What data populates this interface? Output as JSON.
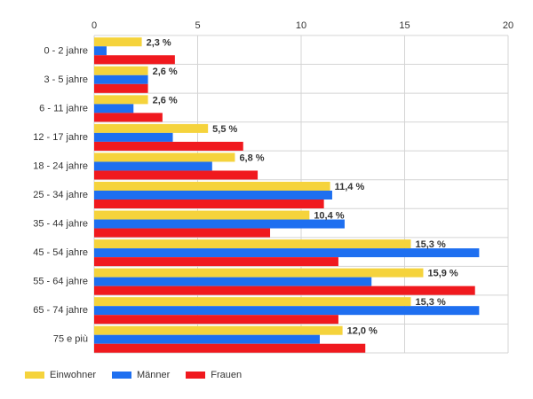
{
  "chart_data": {
    "type": "bar",
    "orientation": "horizontal",
    "categories": [
      "0 - 2 jahre",
      "3 - 5 jahre",
      "6 - 11 jahre",
      "12 - 17 jahre",
      "18 - 24 jahre",
      "25 - 34 jahre",
      "35 - 44 jahre",
      "45 - 54 jahre",
      "55 - 64 jahre",
      "65 - 74 jahre",
      "75 e più"
    ],
    "series": [
      {
        "name": "Einwohner",
        "color": "#f5d33c",
        "values": [
          2.3,
          2.6,
          2.6,
          5.5,
          6.8,
          11.4,
          10.4,
          15.3,
          15.9,
          15.3,
          12.0
        ],
        "labels": [
          "2,3 %",
          "2,6 %",
          "2,6 %",
          "5,5 %",
          "6,8 %",
          "11,4 %",
          "10,4 %",
          "15,3 %",
          "15,9 %",
          "15,3 %",
          "12,0 %"
        ]
      },
      {
        "name": "Männer",
        "color": "#1e6ff0",
        "values": [
          0.6,
          2.6,
          1.9,
          3.8,
          5.7,
          11.5,
          12.1,
          18.6,
          13.4,
          18.6,
          10.9
        ]
      },
      {
        "name": "Frauen",
        "color": "#f0191e",
        "values": [
          3.9,
          2.6,
          3.3,
          7.2,
          7.9,
          11.1,
          8.5,
          11.8,
          18.4,
          11.8,
          13.1
        ]
      }
    ],
    "xlim": [
      0,
      20
    ],
    "xticks": [
      "0",
      "5",
      "10",
      "15",
      "20"
    ],
    "x_axis_position": "top",
    "grid": true,
    "legend_position": "bottom-left",
    "title": "",
    "xlabel": "",
    "ylabel": ""
  }
}
